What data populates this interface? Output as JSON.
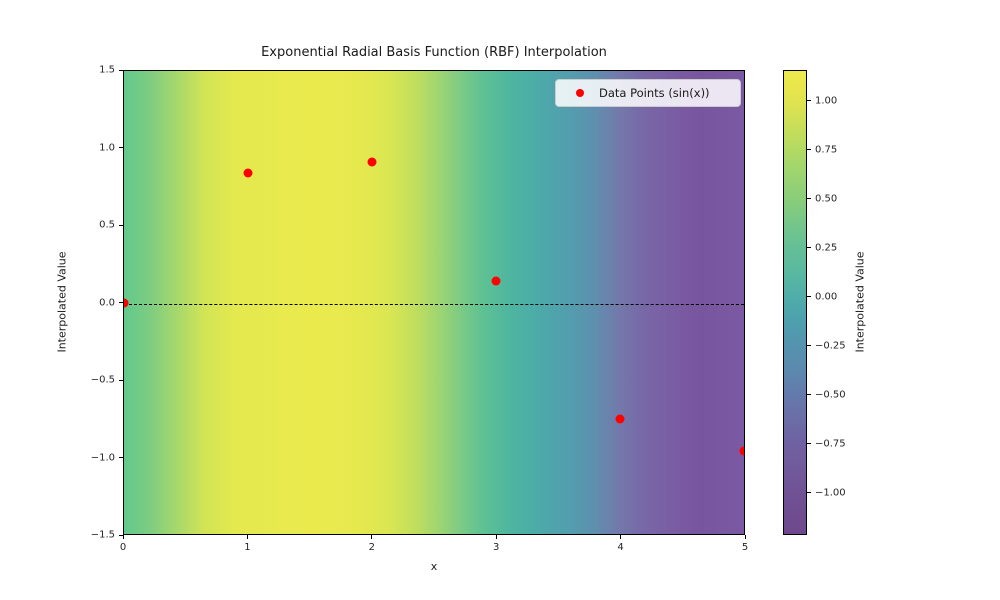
{
  "figure": {
    "background": "#ffffff"
  },
  "chart_data": {
    "type": "scatter",
    "title": "Exponential Radial Basis Function (RBF) Interpolation",
    "xlabel": "x",
    "ylabel": "Interpolated Value",
    "xlim": [
      0,
      5
    ],
    "ylim": [
      -1.5,
      1.5
    ],
    "x_ticks": [
      {
        "value": 0,
        "label": "0"
      },
      {
        "value": 1,
        "label": "1"
      },
      {
        "value": 2,
        "label": "2"
      },
      {
        "value": 3,
        "label": "3"
      },
      {
        "value": 4,
        "label": "4"
      },
      {
        "value": 5,
        "label": "5"
      }
    ],
    "y_ticks": [
      {
        "value": 1.5,
        "label": "1.5"
      },
      {
        "value": 1.0,
        "label": "1.0"
      },
      {
        "value": 0.5,
        "label": "0.5"
      },
      {
        "value": 0.0,
        "label": "0.0"
      },
      {
        "value": -0.5,
        "label": "−0.5"
      },
      {
        "value": -1.0,
        "label": "−1.0"
      },
      {
        "value": -1.5,
        "label": "−1.5"
      }
    ],
    "series": [
      {
        "name": "Data Points (sin(x))",
        "marker": "circle",
        "color": "#ff0000",
        "points": [
          {
            "x": 0,
            "y": 0.0
          },
          {
            "x": 1,
            "y": 0.841
          },
          {
            "x": 2,
            "y": 0.909
          },
          {
            "x": 3,
            "y": 0.141
          },
          {
            "x": 4,
            "y": -0.757
          },
          {
            "x": 5,
            "y": -0.959
          }
        ]
      }
    ],
    "zero_line": {
      "y": 0.0,
      "style": "dashed",
      "color": "#000000"
    },
    "legend": {
      "label": "Data Points (sin(x))",
      "marker_color": "#ff0000",
      "position": "upper right"
    },
    "background_gradient": {
      "direction": "to right",
      "note": "RBF interpolated values rendered as muted-viridis image, varies with x only",
      "stops": [
        {
          "pos": 0.0,
          "color": "#62c98c"
        },
        {
          "pos": 0.04,
          "color": "#7ccc82"
        },
        {
          "pos": 0.09,
          "color": "#abd96a"
        },
        {
          "pos": 0.13,
          "color": "#d2e455"
        },
        {
          "pos": 0.18,
          "color": "#e4e94e"
        },
        {
          "pos": 0.3,
          "color": "#eaea4d"
        },
        {
          "pos": 0.38,
          "color": "#e6e94e"
        },
        {
          "pos": 0.43,
          "color": "#d9e653"
        },
        {
          "pos": 0.47,
          "color": "#c0de5d"
        },
        {
          "pos": 0.51,
          "color": "#9cd572"
        },
        {
          "pos": 0.55,
          "color": "#76c988"
        },
        {
          "pos": 0.58,
          "color": "#5dc194"
        },
        {
          "pos": 0.62,
          "color": "#4fb69f"
        },
        {
          "pos": 0.67,
          "color": "#4caaa9"
        },
        {
          "pos": 0.72,
          "color": "#539dae"
        },
        {
          "pos": 0.76,
          "color": "#5f8fae"
        },
        {
          "pos": 0.8,
          "color": "#7478ab"
        },
        {
          "pos": 0.84,
          "color": "#7867a7"
        },
        {
          "pos": 0.88,
          "color": "#7a5ea4"
        },
        {
          "pos": 0.93,
          "color": "#78559f"
        },
        {
          "pos": 1.0,
          "color": "#7b59a3"
        }
      ]
    },
    "colorbar": {
      "label": "Interpolated Value",
      "vmin": -1.217,
      "vmax": 1.158,
      "ticks": [
        {
          "value": 1.0,
          "label": "1.00"
        },
        {
          "value": 0.75,
          "label": "0.75"
        },
        {
          "value": 0.5,
          "label": "0.50"
        },
        {
          "value": 0.25,
          "label": "0.25"
        },
        {
          "value": 0.0,
          "label": "0.00"
        },
        {
          "value": -0.25,
          "label": "−0.25"
        },
        {
          "value": -0.5,
          "label": "−0.50"
        },
        {
          "value": -0.75,
          "label": "−0.75"
        },
        {
          "value": -1.0,
          "label": "−1.00"
        }
      ],
      "gradient_stops": [
        {
          "pos": 0.0,
          "color": "#eeea4e"
        },
        {
          "pos": 0.03,
          "color": "#e9e64c"
        },
        {
          "pos": 0.07,
          "color": "#dfe350"
        },
        {
          "pos": 0.12,
          "color": "#c9de59"
        },
        {
          "pos": 0.17,
          "color": "#b3da63"
        },
        {
          "pos": 0.22,
          "color": "#9ed46f"
        },
        {
          "pos": 0.28,
          "color": "#89cd7b"
        },
        {
          "pos": 0.33,
          "color": "#76c68a"
        },
        {
          "pos": 0.38,
          "color": "#65bf96"
        },
        {
          "pos": 0.44,
          "color": "#58b8a1"
        },
        {
          "pos": 0.49,
          "color": "#4fadaa"
        },
        {
          "pos": 0.54,
          "color": "#4da0ad"
        },
        {
          "pos": 0.59,
          "color": "#5494af"
        },
        {
          "pos": 0.65,
          "color": "#5d88ae"
        },
        {
          "pos": 0.7,
          "color": "#647aab"
        },
        {
          "pos": 0.75,
          "color": "#6b6ea7"
        },
        {
          "pos": 0.8,
          "color": "#6f62a2"
        },
        {
          "pos": 0.86,
          "color": "#715a9c"
        },
        {
          "pos": 0.91,
          "color": "#705295"
        },
        {
          "pos": 0.95,
          "color": "#6f4d91"
        },
        {
          "pos": 1.0,
          "color": "#6e488c"
        }
      ]
    }
  }
}
